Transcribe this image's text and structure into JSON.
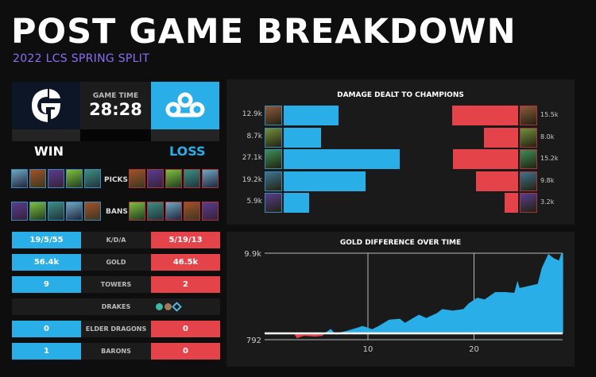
{
  "header": {
    "title": "POST GAME BREAKDOWN",
    "subtitle": "2022 LCS SPRING SPLIT"
  },
  "match": {
    "game_time_label": "GAME TIME",
    "game_time": "28:28",
    "left_team_logo": "EG",
    "left_result": "WIN",
    "right_result": "LOSS"
  },
  "draft": {
    "picks_label": "PICKS",
    "bans_label": "BANS"
  },
  "stats": [
    {
      "label": "K/D/A",
      "left": "19/5/55",
      "right": "5/19/13"
    },
    {
      "label": "GOLD",
      "left": "56.4k",
      "right": "46.5k"
    },
    {
      "label": "TOWERS",
      "left": "9",
      "right": "2"
    },
    {
      "label": "DRAKES",
      "left": null,
      "right": null
    },
    {
      "label": "ELDER DRAGONS",
      "left": "0",
      "right": "0"
    },
    {
      "label": "BARONS",
      "left": "1",
      "right": "0"
    }
  ],
  "drakes_right": [
    "ocean-drake-icon",
    "mountain-drake-icon",
    "hextech-drake-icon"
  ],
  "colors": {
    "blue": "#29aee8",
    "red": "#e5434a",
    "purple": "#8b6ef2"
  },
  "chart_data": [
    {
      "type": "bar",
      "title": "DAMAGE DEALT TO CHAMPIONS",
      "series": [
        {
          "name": "EG",
          "values": [
            12.9,
            8.7,
            27.1,
            19.2,
            5.9
          ],
          "labels": [
            "12.9k",
            "8.7k",
            "27.1k",
            "19.2k",
            "5.9k"
          ]
        },
        {
          "name": "C9",
          "values": [
            15.5,
            8.0,
            15.2,
            9.8,
            3.2
          ],
          "labels": [
            "15.5k",
            "8.0k",
            "15.2k",
            "9.8k",
            "3.2k"
          ]
        }
      ]
    },
    {
      "type": "area",
      "title": "GOLD DIFFERENCE OVER TIME",
      "xlabel": "",
      "ylabel": "",
      "y_tick_labels": [
        "9.9k",
        "792"
      ],
      "x_tick_labels": [
        "10",
        "20"
      ],
      "ylim": [
        -0.792,
        9.9
      ],
      "xlim": [
        0.2,
        28.4
      ],
      "x": [
        0.2,
        3.0,
        3.3,
        4,
        5,
        5.7,
        6,
        6.5,
        7,
        7.3,
        8,
        9,
        9.5,
        10,
        10.4,
        11,
        12,
        13,
        13.5,
        14,
        14.8,
        15.5,
        16.5,
        17,
        18,
        19,
        19.5,
        20.3,
        21,
        22,
        23,
        23.8,
        24.1,
        24.3,
        25,
        26,
        26.4,
        27,
        27.5,
        28,
        28.2,
        28.4
      ],
      "y": [
        0,
        0,
        -0.6,
        -0.3,
        -0.4,
        -0.3,
        0.1,
        0.55,
        -0.2,
        0.1,
        0.3,
        0.7,
        0.9,
        0.7,
        0.5,
        0.9,
        1.7,
        1.8,
        1.3,
        1.7,
        2.3,
        1.9,
        2.5,
        3.0,
        2.8,
        3.0,
        3.7,
        4.4,
        4.2,
        5.1,
        5.1,
        5.0,
        6.5,
        5.6,
        5.8,
        6.1,
        8.1,
        9.8,
        9.3,
        9.0,
        9.8,
        9.9
      ]
    }
  ]
}
